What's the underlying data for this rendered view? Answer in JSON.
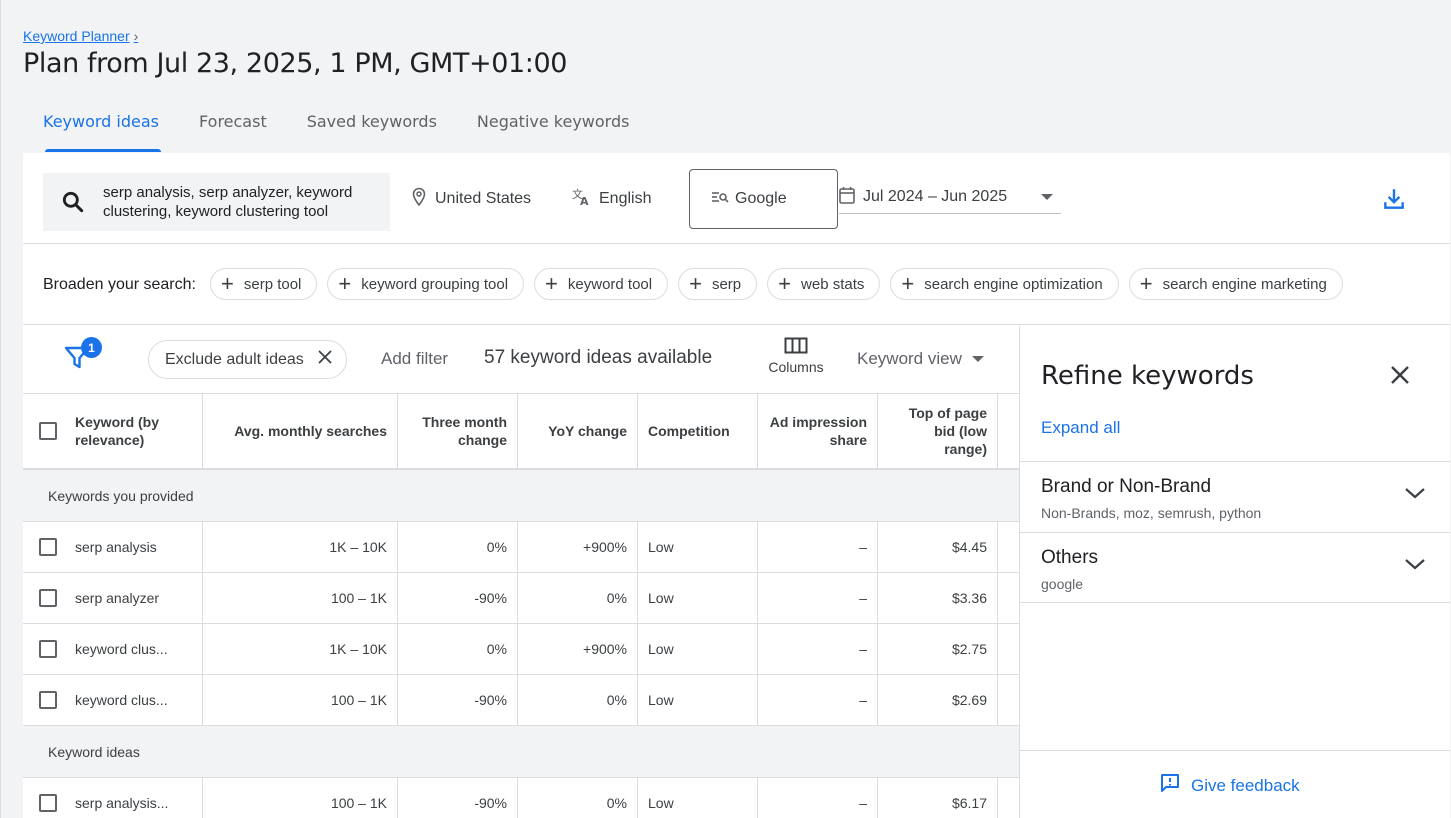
{
  "breadcrumb": {
    "label": "Keyword Planner",
    "chevron": "›"
  },
  "page_title": "Plan from Jul 23, 2025, 1 PM, GMT+01:00",
  "tabs": [
    {
      "label": "Keyword ideas",
      "active": true
    },
    {
      "label": "Forecast"
    },
    {
      "label": "Saved keywords"
    },
    {
      "label": "Negative keywords"
    }
  ],
  "search": {
    "icon": "search-icon",
    "query": "serp analysis, serp analyzer, keyword clustering, keyword clustering tool"
  },
  "location": {
    "icon": "location-pin-icon",
    "label": "United States"
  },
  "language": {
    "icon": "translate-icon",
    "label": "English"
  },
  "network": {
    "icon": "search-network-icon",
    "label": "Google"
  },
  "date_range": {
    "icon": "calendar-icon",
    "label": "Jul 2024 – Jun 2025"
  },
  "download_icon": "download-icon",
  "broaden": {
    "label": "Broaden your search:",
    "chips": [
      "serp tool",
      "keyword grouping tool",
      "keyword tool",
      "serp",
      "web stats",
      "search engine optimization",
      "search engine marketing"
    ]
  },
  "filters": {
    "badge": "1",
    "exclude_chip": "Exclude adult ideas",
    "add_filter": "Add filter",
    "ideas_count": "57 keyword ideas available",
    "columns_label": "Columns",
    "keyword_view": "Keyword view"
  },
  "table": {
    "headers": [
      "Keyword (by relevance)",
      "Avg. monthly searches",
      "Three month change",
      "YoY change",
      "Competition",
      "Ad impression share",
      "Top of page bid (low range)"
    ],
    "group_provided": "Keywords you provided",
    "provided_rows": [
      [
        "serp analysis",
        "1K – 10K",
        "0%",
        "+900%",
        "Low",
        "–",
        "$4.45"
      ],
      [
        "serp analyzer",
        "100 – 1K",
        "-90%",
        "0%",
        "Low",
        "–",
        "$3.36"
      ],
      [
        "keyword clus...",
        "1K – 10K",
        "0%",
        "+900%",
        "Low",
        "–",
        "$2.75"
      ],
      [
        "keyword clus...",
        "100 – 1K",
        "-90%",
        "0%",
        "Low",
        "–",
        "$2.69"
      ]
    ],
    "group_ideas": "Keyword ideas",
    "idea_rows": [
      [
        "serp analysis...",
        "100 – 1K",
        "-90%",
        "0%",
        "Low",
        "–",
        "$6.17"
      ]
    ]
  },
  "refine": {
    "title": "Refine keywords",
    "expand_all": "Expand all",
    "sections": [
      {
        "title": "Brand or Non-Brand",
        "subtitle": "Non-Brands, moz, semrush, python"
      },
      {
        "title": "Others",
        "subtitle": "google"
      }
    ],
    "feedback": "Give feedback"
  },
  "colors": {
    "accent": "#1a73e8",
    "background": "#f1f3f4",
    "text": "#3c4043"
  }
}
